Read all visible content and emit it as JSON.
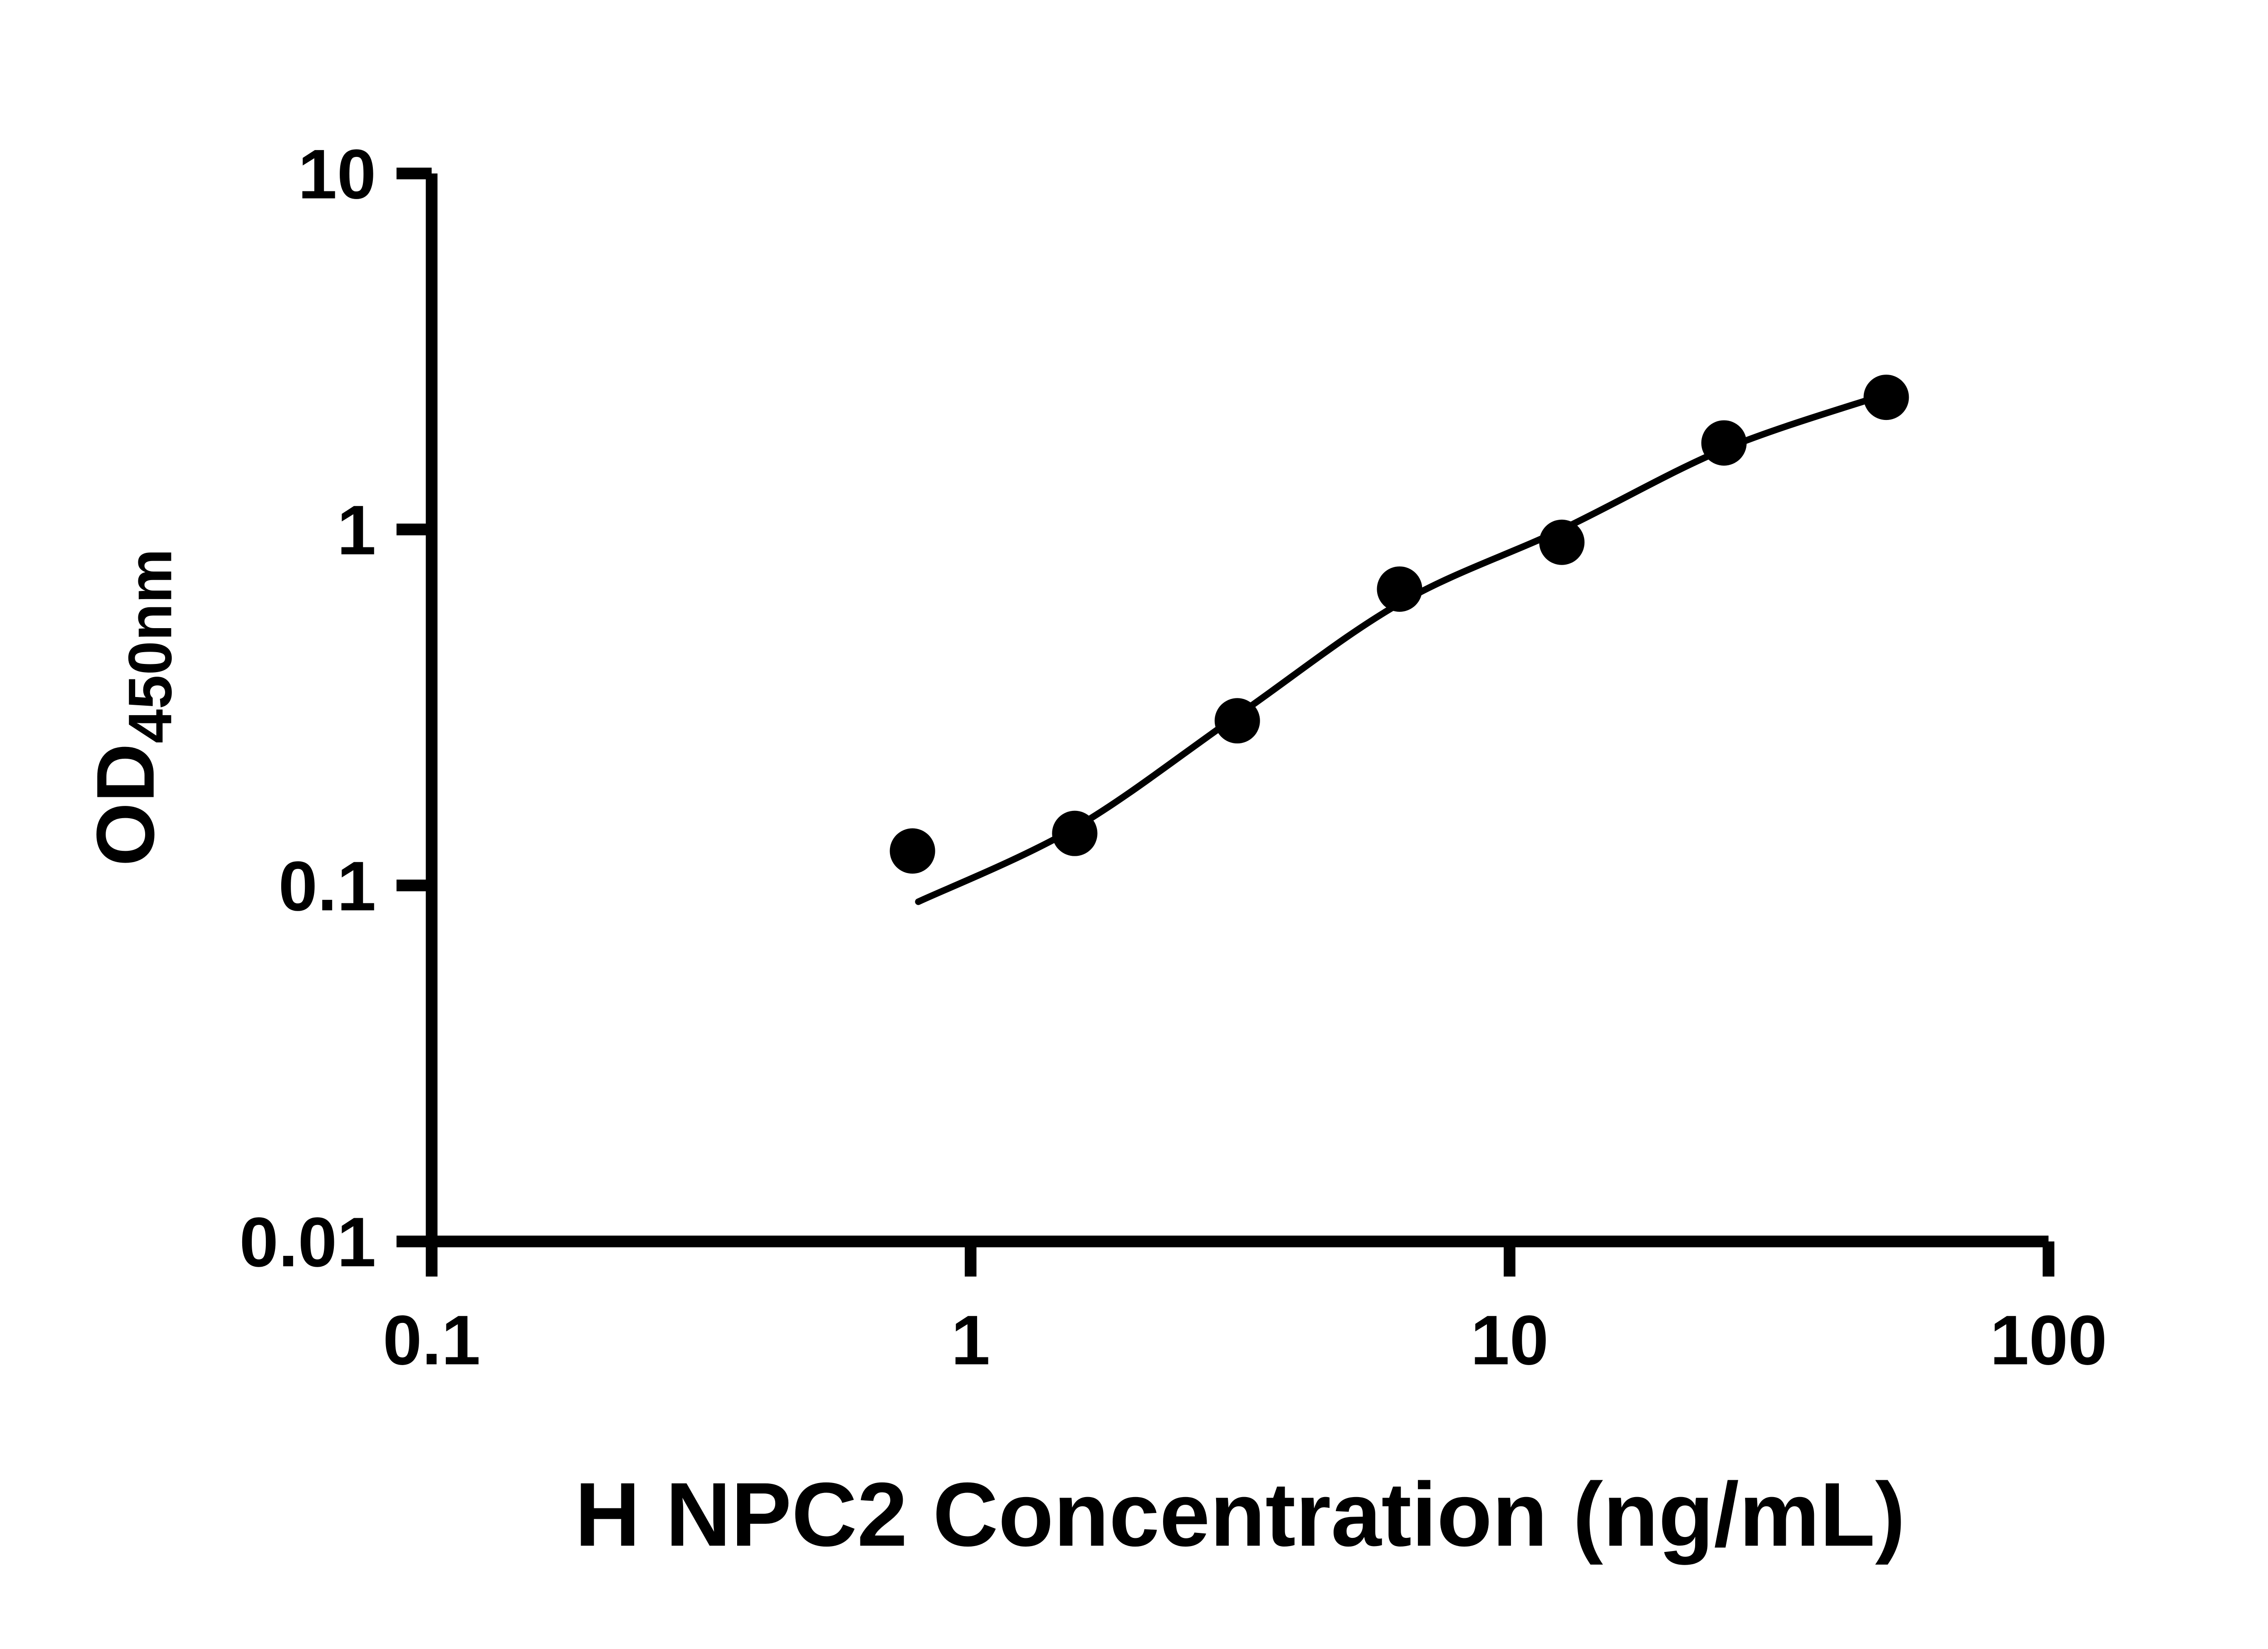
{
  "chart_data": {
    "type": "scatter",
    "title": "",
    "xlabel": "H NPC2 Concentration (ng/mL)",
    "ylabel": "OD",
    "ylabel_subscript": "450nm",
    "x_scale": "log",
    "y_scale": "log",
    "xlim": [
      0.1,
      100
    ],
    "ylim": [
      0.01,
      10
    ],
    "x_ticks": [
      0.1,
      1,
      10,
      100
    ],
    "x_tick_labels": [
      "0.1",
      "1",
      "10",
      "100"
    ],
    "y_ticks": [
      0.01,
      0.1,
      1,
      10
    ],
    "y_tick_labels": [
      "0.01",
      "0.1",
      "1",
      "10"
    ],
    "grid": false,
    "legend": "none",
    "colors": {
      "background": "#ffffff",
      "foreground": "#000000",
      "marker": "#000000",
      "curve": "#000000"
    },
    "series": [
      {
        "name": "H NPC2 standard points",
        "type": "scatter",
        "marker": "circle",
        "color": "#000000",
        "points": [
          {
            "x": 0.78,
            "y": 0.125
          },
          {
            "x": 1.56,
            "y": 0.14
          },
          {
            "x": 3.125,
            "y": 0.29
          },
          {
            "x": 6.25,
            "y": 0.68
          },
          {
            "x": 12.5,
            "y": 0.92
          },
          {
            "x": 25,
            "y": 1.75
          },
          {
            "x": 50,
            "y": 2.35
          }
        ]
      },
      {
        "name": "fitted standard curve",
        "type": "line",
        "color": "#000000",
        "points": [
          {
            "x": 0.8,
            "y": 0.09
          },
          {
            "x": 1.56,
            "y": 0.145
          },
          {
            "x": 3.125,
            "y": 0.3
          },
          {
            "x": 6.25,
            "y": 0.62
          },
          {
            "x": 12.5,
            "y": 1.0
          },
          {
            "x": 25,
            "y": 1.68
          },
          {
            "x": 50,
            "y": 2.4
          }
        ]
      }
    ]
  }
}
